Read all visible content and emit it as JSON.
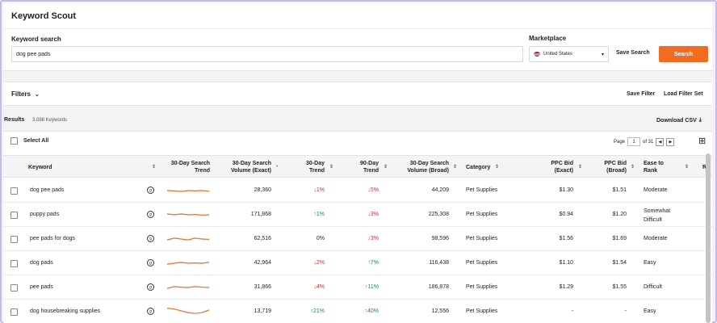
{
  "app_title": "Keyword Scout",
  "search": {
    "label": "Keyword search",
    "value": "dog pee pads",
    "marketplace_label": "Marketplace",
    "marketplace_value": "United States",
    "save_search": "Save Search",
    "search_button": "Search"
  },
  "filters": {
    "label": "Filters",
    "save_filter": "Save Filter",
    "load_filter_set": "Load Filter Set"
  },
  "results": {
    "label": "Results",
    "count": "3,098 Keywords",
    "download_csv": "Download CSV",
    "select_all": "Select All",
    "page_label": "Page",
    "page_value": "1",
    "page_of": "of 31"
  },
  "columns": {
    "keyword": "Keyword",
    "trend30_a": "30-Day Search",
    "trend30_b": "Trend",
    "vol_exact_a": "30-Day Search",
    "vol_exact_b": "Volume (Exact)",
    "t30_a": "30-Day",
    "t30_b": "Trend",
    "t90_a": "90-Day",
    "t90_b": "Trend",
    "vol_broad_a": "30-Day Search",
    "vol_broad_b": "Volume (Broad)",
    "category": "Category",
    "ppc_exact_a": "PPC Bid",
    "ppc_exact_b": "(Exact)",
    "ppc_broad_a": "PPC Bid",
    "ppc_broad_b": "(Broad)",
    "ease_a": "Ease to",
    "ease_b": "Rank",
    "relevancy": "Re"
  },
  "rows": [
    {
      "keyword": "dog pee pads",
      "vol_exact": "28,360",
      "t30": "↓1%",
      "t30_dir": "down",
      "t90": "↓5%",
      "t90_dir": "down",
      "vol_broad": "44,209",
      "category": "Pet Supplies",
      "ppc_exact": "$1.30",
      "ppc_broad": "$1.51",
      "ease_a": "Moderate",
      "ease_b": "",
      "spark": [
        0.5,
        0.48,
        0.45,
        0.5,
        0.48,
        0.5,
        0.47
      ]
    },
    {
      "keyword": "puppy pads",
      "vol_exact": "171,868",
      "t30": "↑1%",
      "t30_dir": "up",
      "t90": "↓3%",
      "t90_dir": "down",
      "vol_broad": "225,308",
      "category": "Pet Supplies",
      "ppc_exact": "$0.94",
      "ppc_broad": "$1.20",
      "ease_a": "Somewhat",
      "ease_b": "Difficult",
      "spark": [
        0.55,
        0.5,
        0.55,
        0.5,
        0.52,
        0.48,
        0.5
      ]
    },
    {
      "keyword": "pee pads for dogs",
      "vol_exact": "62,516",
      "t30": "0%",
      "t30_dir": "flat",
      "t90": "↓3%",
      "t90_dir": "down",
      "vol_broad": "98,596",
      "category": "Pet Supplies",
      "ppc_exact": "$1.56",
      "ppc_broad": "$1.69",
      "ease_a": "Moderate",
      "ease_b": "",
      "spark": [
        0.45,
        0.55,
        0.5,
        0.45,
        0.55,
        0.5,
        0.48
      ]
    },
    {
      "keyword": "dog pads",
      "vol_exact": "42,964",
      "t30": "↓2%",
      "t30_dir": "down",
      "t90": "↑7%",
      "t90_dir": "up",
      "vol_broad": "116,438",
      "category": "Pet Supplies",
      "ppc_exact": "$1.10",
      "ppc_broad": "$1.54",
      "ease_a": "Easy",
      "ease_b": "",
      "spark": [
        0.45,
        0.5,
        0.55,
        0.5,
        0.52,
        0.5,
        0.55
      ]
    },
    {
      "keyword": "pee pads",
      "vol_exact": "31,866",
      "t30": "↓4%",
      "t30_dir": "down",
      "t90": "↑11%",
      "t90_dir": "up",
      "vol_broad": "186,878",
      "category": "Pet Supplies",
      "ppc_exact": "$1.29",
      "ppc_broad": "$1.55",
      "ease_a": "Difficult",
      "ease_b": "",
      "spark": [
        0.45,
        0.55,
        0.52,
        0.5,
        0.55,
        0.52,
        0.5
      ]
    },
    {
      "keyword": "dog housebreaking supplies",
      "vol_exact": "13,719",
      "t30": "↑21%",
      "t30_dir": "up",
      "t90": "↑40%",
      "t90_dir": "up",
      "vol_broad": "12,556",
      "category": "Pet Supplies",
      "ppc_exact": "-",
      "ppc_broad": "-",
      "ease_a": "Easy",
      "ease_b": "",
      "spark": [
        0.7,
        0.65,
        0.55,
        0.45,
        0.4,
        0.45,
        0.6
      ]
    }
  ],
  "colors": {
    "accent": "#f26b21",
    "up": "#1e8a3e",
    "down": "#d42c2c"
  }
}
